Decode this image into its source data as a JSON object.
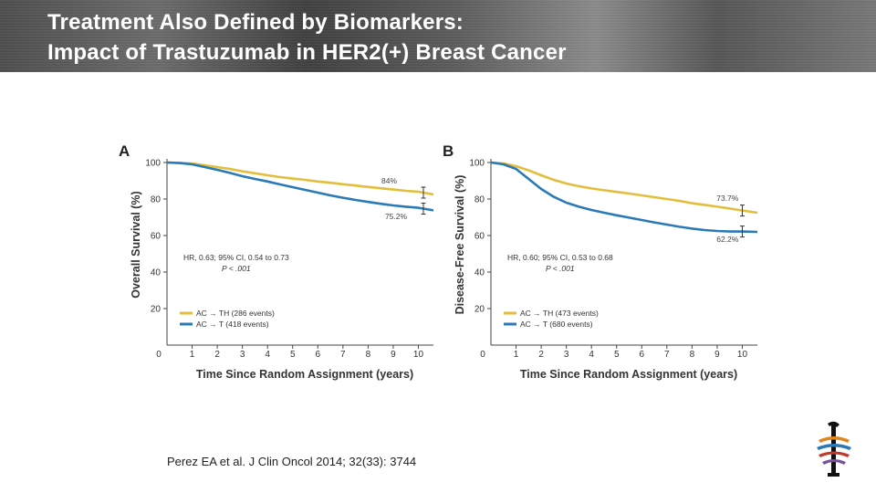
{
  "slide": {
    "title_line1": "Treatment Also Defined by Biomarkers:",
    "title_line2": "Impact of Trastuzumab in HER2(+) Breast Cancer",
    "citation": "Perez EA et al. J Clin Oncol 2014; 32(33): 3744"
  },
  "colors": {
    "yellow": "#e2be3c",
    "blue": "#2a7ab8"
  },
  "chart_data": [
    {
      "type": "line",
      "panel_label": "A",
      "ylabel": "Overall Survival (%)",
      "xlabel": "Time Since Random Assignment (years)",
      "xlim": [
        0,
        10.6
      ],
      "ylim": [
        0,
        100
      ],
      "xticks": [
        "0",
        "1",
        "2",
        "3",
        "4",
        "5",
        "6",
        "7",
        "8",
        "9",
        "10"
      ],
      "yticks": [
        "20",
        "40",
        "60",
        "80",
        "100"
      ],
      "hr_text": "HR, 0.63; 95% CI, 0.54 to 0.73",
      "p_text": "P < .001",
      "series": [
        {
          "name": "AC → TH (286 events)",
          "color": "#e2be3c",
          "x": [
            0,
            0.5,
            1,
            1.5,
            2,
            2.5,
            3,
            3.5,
            4,
            4.5,
            5,
            5.5,
            6,
            6.5,
            7,
            7.5,
            8,
            8.5,
            9,
            9.5,
            10,
            10.6
          ],
          "y": [
            100,
            99.8,
            99.5,
            98.5,
            97.5,
            96.5,
            95.2,
            94.1,
            93,
            92,
            91.2,
            90.5,
            89.6,
            88.9,
            88.1,
            87.4,
            86.6,
            85.9,
            85.2,
            84.5,
            84,
            82.5
          ]
        },
        {
          "name": "AC → T (418 events)",
          "color": "#2a7ab8",
          "x": [
            0,
            0.5,
            1,
            1.5,
            2,
            2.5,
            3,
            3.5,
            4,
            4.5,
            5,
            5.5,
            6,
            6.5,
            7,
            7.5,
            8,
            8.5,
            9,
            9.5,
            10,
            10.6
          ],
          "y": [
            100,
            99.7,
            99,
            97.5,
            96,
            94.3,
            92.5,
            91,
            89.6,
            88,
            86.5,
            85,
            83.5,
            82,
            80.7,
            79.5,
            78.4,
            77.4,
            76.5,
            75.8,
            75.2,
            73.8
          ]
        }
      ],
      "annotations": [
        {
          "text": "84%",
          "x": 9.15,
          "y": 88.5,
          "anchor": "end"
        },
        {
          "text": "75.2%",
          "x": 9.55,
          "y": 69,
          "anchor": "end"
        }
      ],
      "error_bar_x": 10.2
    },
    {
      "type": "line",
      "panel_label": "B",
      "ylabel": "Disease-Free Survival (%)",
      "xlabel": "Time Since Random Assignment (years)",
      "xlim": [
        0,
        10.6
      ],
      "ylim": [
        0,
        100
      ],
      "xticks": [
        "0",
        "1",
        "2",
        "3",
        "4",
        "5",
        "6",
        "7",
        "8",
        "9",
        "10"
      ],
      "yticks": [
        "20",
        "40",
        "60",
        "80",
        "100"
      ],
      "hr_text": "HR, 0.60; 95% CI, 0.53 to 0.68",
      "p_text": "P < .001",
      "series": [
        {
          "name": "AC → TH (473 events)",
          "color": "#e2be3c",
          "x": [
            0,
            0.5,
            1,
            1.5,
            2,
            2.5,
            3,
            3.5,
            4,
            4.5,
            5,
            5.5,
            6,
            6.5,
            7,
            7.5,
            8,
            8.5,
            9,
            9.5,
            10,
            10.6
          ],
          "y": [
            100,
            99.5,
            98,
            95.7,
            93,
            90.5,
            88.5,
            87,
            85.8,
            84.8,
            83.9,
            83,
            82,
            81,
            80,
            79,
            77.7,
            76.8,
            75.8,
            74.8,
            73.7,
            72.5
          ]
        },
        {
          "name": "AC → T (680 events)",
          "color": "#2a7ab8",
          "x": [
            0,
            0.5,
            1,
            1.5,
            2,
            2.5,
            3,
            3.5,
            4,
            4.5,
            5,
            5.5,
            6,
            6.5,
            7,
            7.5,
            8,
            8.5,
            9,
            9.5,
            10,
            10.6
          ],
          "y": [
            100,
            99,
            96.5,
            91,
            85.5,
            81.2,
            78,
            75.8,
            74,
            72.5,
            71.1,
            69.8,
            68.5,
            67.2,
            66,
            64.8,
            63.8,
            63,
            62.5,
            62.2,
            62.2,
            62
          ]
        }
      ],
      "annotations": [
        {
          "text": "73.7%",
          "x": 9.85,
          "y": 79,
          "anchor": "end"
        },
        {
          "text": "62.2%",
          "x": 9.85,
          "y": 56.5,
          "anchor": "end"
        }
      ],
      "error_bar_x": 10.0
    }
  ]
}
